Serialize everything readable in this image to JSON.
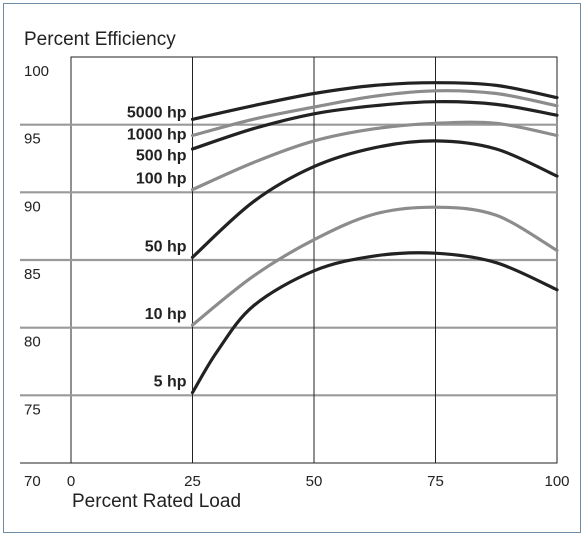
{
  "chart_data": {
    "type": "line",
    "ylabel": "Percent Efficiency",
    "xlabel": "Percent Rated Load",
    "xlim": [
      0,
      100
    ],
    "ylim": [
      70,
      100
    ],
    "x_ticks": [
      0,
      25,
      50,
      75,
      100
    ],
    "y_ticks": [
      70,
      75,
      80,
      85,
      90,
      95,
      100
    ],
    "grid": true,
    "series": [
      {
        "name": "5000 hp",
        "color": "#222222",
        "x": [
          25,
          37.5,
          50,
          62.5,
          75,
          87.5,
          100
        ],
        "y": [
          95.4,
          96.4,
          97.3,
          97.9,
          98.1,
          97.9,
          97.0
        ]
      },
      {
        "name": "1000 hp",
        "color": "#8c8c8c",
        "x": [
          25,
          37.5,
          50,
          62.5,
          75,
          87.5,
          100
        ],
        "y": [
          94.2,
          95.4,
          96.3,
          97.1,
          97.5,
          97.3,
          96.4
        ]
      },
      {
        "name": "500 hp",
        "color": "#222222",
        "x": [
          25,
          37.5,
          50,
          62.5,
          75,
          87.5,
          100
        ],
        "y": [
          93.2,
          94.7,
          95.8,
          96.4,
          96.7,
          96.5,
          95.7
        ]
      },
      {
        "name": "100 hp",
        "color": "#8c8c8c",
        "x": [
          25,
          37.5,
          50,
          62.5,
          75,
          87.5,
          100
        ],
        "y": [
          90.2,
          92.2,
          93.8,
          94.7,
          95.1,
          95.1,
          94.2
        ]
      },
      {
        "name": "50 hp",
        "color": "#222222",
        "x": [
          25,
          37.5,
          50,
          62.5,
          75,
          87.5,
          100
        ],
        "y": [
          85.2,
          89.3,
          91.9,
          93.3,
          93.8,
          93.2,
          91.2
        ]
      },
      {
        "name": "10 hp",
        "color": "#8c8c8c",
        "x": [
          25,
          37.5,
          50,
          62.5,
          75,
          87.5,
          100
        ],
        "y": [
          80.2,
          83.8,
          86.5,
          88.4,
          88.9,
          88.3,
          85.7
        ]
      },
      {
        "name": "5 hp",
        "color": "#222222",
        "x": [
          25,
          30,
          37.5,
          50,
          62.5,
          75,
          87.5,
          100
        ],
        "y": [
          75.2,
          78.2,
          81.6,
          84.2,
          85.3,
          85.5,
          84.8,
          82.8
        ]
      }
    ]
  }
}
